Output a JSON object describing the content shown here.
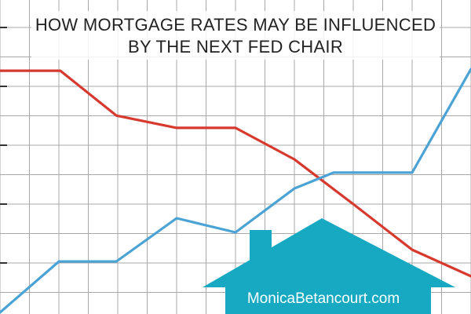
{
  "chart_data": {
    "type": "line",
    "title": [
      "HOW MORTGAGE RATES MAY BE INFLUENCED",
      "BY THE NEXT FED CHAIR"
    ],
    "annotation": "MonicaBetancourt.com",
    "xlim": [
      0,
      16
    ],
    "xticks": [
      0,
      1,
      2,
      3,
      4,
      5,
      6,
      7,
      8,
      9,
      10,
      11,
      12,
      13,
      14,
      15,
      16
    ],
    "ylim": [
      0,
      9
    ],
    "yticks": [
      0,
      1,
      2,
      3,
      4,
      5,
      6,
      7,
      8,
      9
    ],
    "grid": true,
    "series": [
      {
        "color": "#d63a2f",
        "x": [
          0,
          2.05,
          3.95,
          6,
          8,
          10,
          12,
          14,
          16
        ],
        "values": [
          7.53,
          7.53,
          6.01,
          5.59,
          5.59,
          4.52,
          3.0,
          1.45,
          0.55
        ]
      },
      {
        "color": "#4aa3d4",
        "x": [
          0,
          2,
          3.95,
          6,
          8,
          10,
          11.33,
          14,
          16
        ],
        "values": [
          -0.68,
          1.05,
          1.05,
          2.52,
          2.04,
          3.53,
          4.07,
          4.07,
          7.59
        ]
      }
    ]
  }
}
